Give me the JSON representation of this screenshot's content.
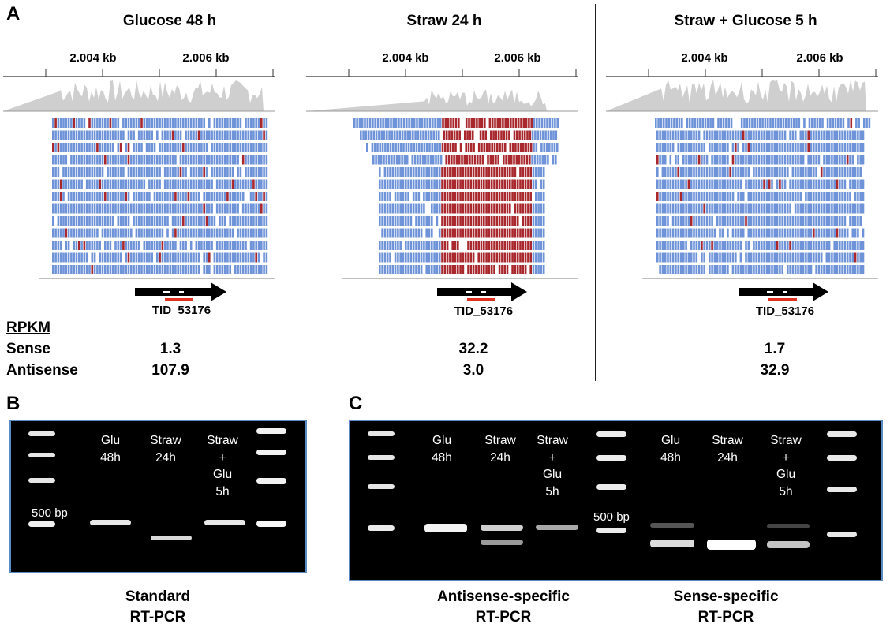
{
  "panel_a": {
    "label": "A",
    "tracks": [
      {
        "title": "Glucose 48 h",
        "ticks": [
          "2.004 kb",
          "2.006 kb"
        ],
        "gene": "TID_53176",
        "sense": "1.3",
        "antisense": "107.9",
        "read_pattern": "blue"
      },
      {
        "title": "Straw 24 h",
        "ticks": [
          "2.004 kb",
          "2.006 kb"
        ],
        "gene": "TID_53176",
        "sense": "32.2",
        "antisense": "3.0",
        "read_pattern": "red"
      },
      {
        "title": "Straw + Glucose 5 h",
        "ticks": [
          "2.004 kb",
          "2.006 kb"
        ],
        "gene": "TID_53176",
        "sense": "1.7",
        "antisense": "32.9",
        "read_pattern": "blue"
      }
    ],
    "rpkm_header": "RPKM",
    "sense_label": "Sense",
    "antisense_label": "Antisense"
  },
  "panel_b": {
    "label": "B",
    "lanes": [
      {
        "lines": [
          "Glu",
          "48h"
        ]
      },
      {
        "lines": [
          "Straw",
          "24h"
        ]
      },
      {
        "lines": [
          "Straw",
          "+",
          "Glu",
          "5h"
        ]
      }
    ],
    "marker": "500 bp",
    "caption_lines": [
      "Standard",
      "RT-PCR"
    ]
  },
  "panel_c": {
    "label": "C",
    "lanes_antisense": [
      {
        "lines": [
          "Glu",
          "48h"
        ]
      },
      {
        "lines": [
          "Straw",
          "24h"
        ]
      },
      {
        "lines": [
          "Straw",
          "+",
          "Glu",
          "5h"
        ]
      }
    ],
    "lanes_sense": [
      {
        "lines": [
          "Glu",
          "48h"
        ]
      },
      {
        "lines": [
          "Straw",
          "24h"
        ]
      },
      {
        "lines": [
          "Straw",
          "+",
          "Glu",
          "5h"
        ]
      }
    ],
    "marker": "500 bp",
    "caption_antisense_lines": [
      "Antisense-specific",
      "RT-PCR"
    ],
    "caption_sense_lines": [
      "Sense-specific",
      "RT-PCR"
    ]
  },
  "colors": {
    "read_blue": "#6f93d8",
    "read_red": "#a8282d",
    "coverage": "#cfcfcf",
    "gel_border": "#5b8bc6",
    "primer": "#e0331f"
  }
}
